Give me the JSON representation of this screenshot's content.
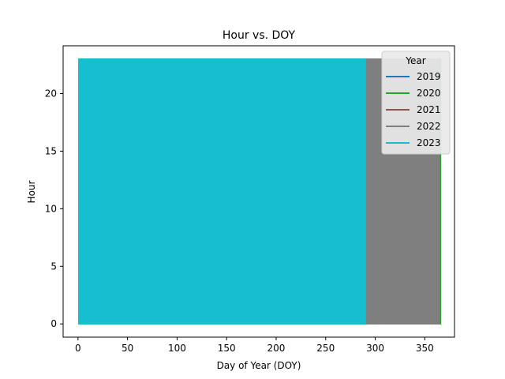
{
  "chart_data": {
    "type": "area",
    "title": "Hour vs. DOY",
    "xlabel": "Day of Year (DOY)",
    "ylabel": "Hour",
    "xlim": [
      -15,
      380
    ],
    "ylim": [
      -1.15,
      24.15
    ],
    "x_ticks": [
      0,
      50,
      100,
      150,
      200,
      250,
      300,
      350
    ],
    "y_ticks": [
      0,
      5,
      10,
      15,
      20
    ],
    "grid": false,
    "legend": {
      "title": "Year",
      "position": "top-right"
    },
    "series": [
      {
        "name": "2019",
        "color": "#1f77b4",
        "x_start": 1,
        "x_end": 365,
        "y_min": 0,
        "y_max": 23
      },
      {
        "name": "2020",
        "color": "#2ca02c",
        "x_start": 1,
        "x_end": 366,
        "y_min": 0,
        "y_max": 23
      },
      {
        "name": "2021",
        "color": "#8c564b",
        "x_start": 1,
        "x_end": 365,
        "y_min": 0,
        "y_max": 23
      },
      {
        "name": "2022",
        "color": "#7f7f7f",
        "x_start": 1,
        "x_end": 365,
        "y_min": 0,
        "y_max": 23
      },
      {
        "name": "2023",
        "color": "#17becf",
        "x_start": 1,
        "x_end": 290,
        "y_min": 0,
        "y_max": 23
      }
    ]
  }
}
